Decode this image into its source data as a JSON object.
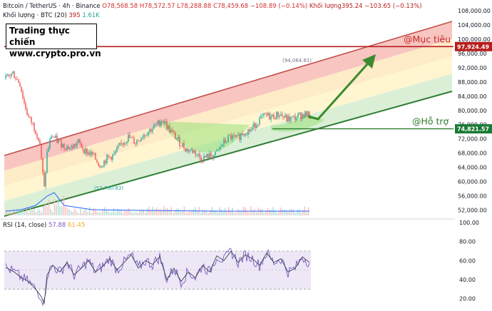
{
  "header": {
    "symbol_line": "Bitcoin / TetherUS · 4h · Binance",
    "ohlc": "O78,568.58  H78,572.57  L78,288.88  C78,459.68  −108.89 (−0.14%)",
    "volume_ma": "Khối lượng395.24  −103.65 (−0.13%)",
    "volume_line": "Khối lượng · BTC (20)",
    "volume_value": "395",
    "volume_ma_value": "1.61K",
    "rsi_label": "RSI (14, close)",
    "rsi_value": "57.88",
    "rsi_ma_value": "61.45"
  },
  "brand": {
    "line1": "Trading thực chiến",
    "line2": "www.crypto.pro.vn"
  },
  "colors": {
    "up": "#26a69a",
    "down": "#ef5350",
    "target": "#b71c1c",
    "support": "#2e7d32",
    "rsi": "#7e57c2",
    "rsi_ma": "#f9a825"
  },
  "chart_data": {
    "type": "candlestick",
    "price_axis_ticks": [
      52000,
      56000,
      60000,
      64000,
      68000,
      72000,
      76000,
      80000,
      84000,
      88000,
      92000,
      96000,
      100000,
      104000,
      108000
    ],
    "ylim": [
      50500,
      109000
    ],
    "target_label": "@Mục tiêu",
    "target_price": 97924.49,
    "target_badge": "97,924.49",
    "support_label": "@Hỗ trợ",
    "support_price": 74821.57,
    "support_badge": "74,821.57",
    "annotations": [
      {
        "text": "(94,064.81)",
        "price": 94064.81
      },
      {
        "text": "(57,760.83)",
        "price": 57760.83
      }
    ],
    "price_path_key_points": [
      [
        0,
        90200
      ],
      [
        8,
        89000
      ],
      [
        18,
        90500
      ],
      [
        28,
        87500
      ],
      [
        34,
        82000
      ],
      [
        40,
        78000
      ],
      [
        46,
        76000
      ],
      [
        52,
        73500
      ],
      [
        56,
        70500
      ],
      [
        58,
        66000
      ],
      [
        62,
        58000
      ],
      [
        66,
        68000
      ],
      [
        72,
        73000
      ],
      [
        80,
        71500
      ],
      [
        90,
        70000
      ],
      [
        100,
        69500
      ],
      [
        110,
        71000
      ],
      [
        120,
        68500
      ],
      [
        130,
        67500
      ],
      [
        140,
        64500
      ],
      [
        150,
        66500
      ],
      [
        160,
        67500
      ],
      [
        170,
        70500
      ],
      [
        180,
        72500
      ],
      [
        190,
        71000
      ],
      [
        200,
        73000
      ],
      [
        210,
        74500
      ],
      [
        220,
        75800
      ],
      [
        228,
        77500
      ],
      [
        236,
        75000
      ],
      [
        244,
        73000
      ],
      [
        252,
        71000
      ],
      [
        262,
        69000
      ],
      [
        272,
        68500
      ],
      [
        282,
        66500
      ],
      [
        292,
        67000
      ],
      [
        302,
        67500
      ],
      [
        312,
        70500
      ],
      [
        322,
        72500
      ],
      [
        332,
        72000
      ],
      [
        342,
        74000
      ],
      [
        352,
        74500
      ],
      [
        362,
        77000
      ],
      [
        372,
        78500
      ],
      [
        382,
        78200
      ],
      [
        392,
        79000
      ],
      [
        402,
        77500
      ],
      [
        412,
        77800
      ],
      [
        420,
        78500
      ],
      [
        428,
        79000
      ],
      [
        434,
        78460
      ]
    ],
    "rsi_axis_ticks": [
      20,
      40,
      60,
      80,
      100
    ],
    "rsi_ylim": [
      10,
      100
    ],
    "rsi_bands": [
      30,
      70
    ],
    "rsi_path_key_points": [
      [
        0,
        55
      ],
      [
        10,
        52
      ],
      [
        20,
        48
      ],
      [
        30,
        42
      ],
      [
        40,
        38
      ],
      [
        50,
        30
      ],
      [
        58,
        22
      ],
      [
        62,
        15
      ],
      [
        66,
        45
      ],
      [
        74,
        55
      ],
      [
        84,
        48
      ],
      [
        94,
        58
      ],
      [
        104,
        45
      ],
      [
        114,
        52
      ],
      [
        124,
        60
      ],
      [
        134,
        48
      ],
      [
        144,
        54
      ],
      [
        154,
        62
      ],
      [
        164,
        50
      ],
      [
        174,
        58
      ],
      [
        184,
        66
      ],
      [
        194,
        52
      ],
      [
        204,
        60
      ],
      [
        214,
        56
      ],
      [
        224,
        64
      ],
      [
        234,
        40
      ],
      [
        244,
        52
      ],
      [
        254,
        38
      ],
      [
        264,
        48
      ],
      [
        274,
        42
      ],
      [
        284,
        55
      ],
      [
        294,
        48
      ],
      [
        304,
        65
      ],
      [
        314,
        60
      ],
      [
        324,
        70
      ],
      [
        334,
        58
      ],
      [
        344,
        66
      ],
      [
        354,
        62
      ],
      [
        364,
        55
      ],
      [
        374,
        68
      ],
      [
        384,
        58
      ],
      [
        394,
        62
      ],
      [
        404,
        48
      ],
      [
        414,
        52
      ],
      [
        424,
        64
      ],
      [
        434,
        58
      ]
    ]
  }
}
